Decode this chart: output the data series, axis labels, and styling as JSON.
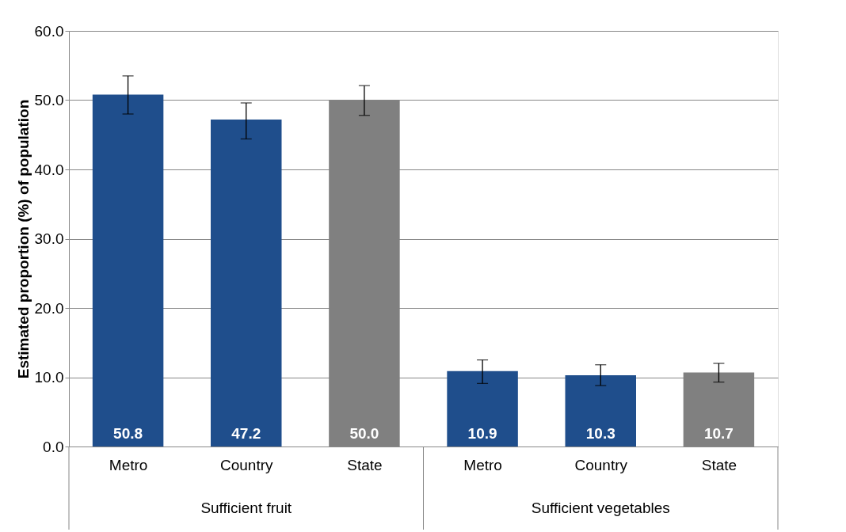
{
  "chart_data": {
    "type": "bar",
    "ylabel": "Estimated proportion (%) of population",
    "categories": [
      "Metro",
      "Country",
      "State",
      "Metro",
      "Country",
      "State"
    ],
    "values": [
      50.8,
      47.2,
      50.0,
      10.9,
      10.3,
      10.7
    ],
    "colors": [
      "#1f4e8c",
      "#1f4e8c",
      "#808080",
      "#1f4e8c",
      "#1f4e8c",
      "#808080"
    ],
    "errors": [
      [
        48.0,
        53.5
      ],
      [
        44.4,
        49.6
      ],
      [
        47.8,
        52.1
      ],
      [
        9.1,
        12.5
      ],
      [
        8.8,
        11.8
      ],
      [
        9.3,
        12.0
      ]
    ],
    "ylim": [
      0,
      60
    ],
    "yticks": [
      {
        "value": 0,
        "label": "0.0"
      },
      {
        "value": 10,
        "label": "10.0"
      },
      {
        "value": 20,
        "label": "20.0"
      },
      {
        "value": 30,
        "label": "30.0"
      },
      {
        "value": 40,
        "label": "40.0"
      },
      {
        "value": 50,
        "label": "50.0"
      },
      {
        "value": 60,
        "label": "60.0"
      }
    ],
    "grid": "y",
    "value_labels": [
      "50.8",
      "47.2",
      "50.0",
      "10.9",
      "10.3",
      "10.7"
    ],
    "annotations": [
      "Sufficient fruit",
      "Sufficient vegetables"
    ]
  }
}
